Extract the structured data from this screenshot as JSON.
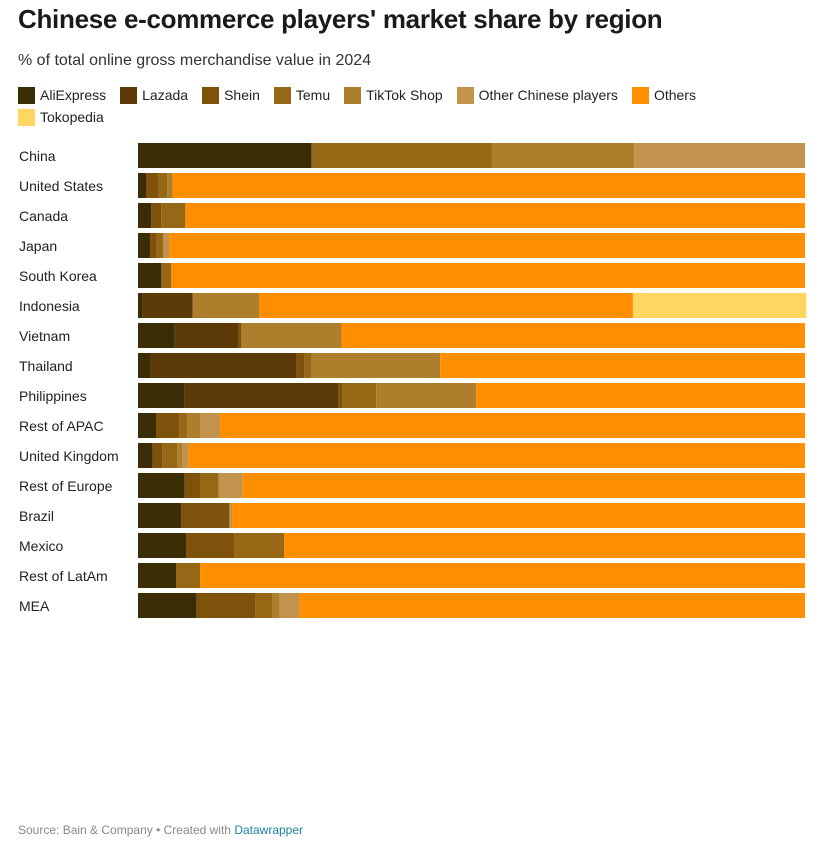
{
  "title": "Chinese e-commerce players' market share by region",
  "subtitle": "% of total online gross merchandise value in 2024",
  "footer": {
    "source": "Source: Bain & Company • Created with ",
    "link": "Datawrapper"
  },
  "chart_data": {
    "type": "bar",
    "orientation": "horizontal",
    "stacked": true,
    "xlim": [
      0,
      100
    ],
    "grid": false,
    "legend_position": "top",
    "title": "Chinese e-commerce players' market share by region",
    "subtitle": "% of total online gross merchandise value in 2024",
    "colors": {
      "AliExpress": "#3a2c05",
      "Lazada": "#5c3a08",
      "Shein": "#7e520b",
      "Temu": "#966714",
      "TikTok Shop": "#ad7f2c",
      "Other Chinese players": "#c2934d",
      "Others": "#ff8f00",
      "Tokopedia": "#ffd65f"
    },
    "series_names": [
      "AliExpress",
      "Lazada",
      "Shein",
      "Temu",
      "TikTok Shop",
      "Other Chinese players",
      "Others",
      "Tokopedia"
    ],
    "categories": [
      "China",
      "United States",
      "Canada",
      "Japan",
      "South Korea",
      "Indonesia",
      "Vietnam",
      "Thailand",
      "Philippines",
      "Rest of APAC",
      "United Kingdom",
      "Rest of Europe",
      "Brazil",
      "Mexico",
      "Rest of LatAm",
      "MEA"
    ],
    "groups": [
      [
        0
      ],
      [
        1,
        2
      ],
      [
        3,
        4
      ],
      [
        5,
        6,
        7,
        8,
        9
      ],
      [
        10,
        11
      ],
      [
        12,
        13,
        14
      ],
      [
        15
      ]
    ],
    "series": [
      {
        "name": "AliExpress",
        "values": [
          26,
          1.2,
          2,
          1.8,
          3.5,
          0.7,
          5.5,
          1.8,
          7,
          2.7,
          2.2,
          7,
          6.5,
          7.2,
          5.7,
          8.8
        ]
      },
      {
        "name": "Lazada",
        "values": [
          0,
          0,
          0,
          0,
          0,
          7.5,
          9.5,
          22,
          23,
          0,
          0,
          0,
          0,
          0,
          0,
          0
        ]
      },
      {
        "name": "Shein",
        "values": [
          0,
          1.8,
          1.5,
          1,
          0,
          0,
          0.5,
          1.2,
          0.7,
          3.5,
          1.5,
          2.3,
          7.2,
          7.2,
          0,
          8.8
        ]
      },
      {
        "name": "Temu",
        "values": [
          27,
          1.4,
          3.6,
          1,
          1.5,
          0,
          0,
          1,
          5,
          1.2,
          2.2,
          2.8,
          0,
          7.5,
          3.6,
          2.6
        ]
      },
      {
        "name": "TikTok Shop",
        "values": [
          21.4,
          0.8,
          0,
          0,
          0,
          10,
          15,
          19.3,
          15,
          1.9,
          0.8,
          0,
          0,
          0,
          0,
          1
        ]
      },
      {
        "name": "Other Chinese players",
        "values": [
          25.6,
          0,
          0,
          0.9,
          0,
          0,
          0,
          0,
          0,
          3,
          0.9,
          3.6,
          0.4,
          0,
          0,
          3
        ]
      },
      {
        "name": "Others",
        "values": [
          0,
          94.8,
          92.9,
          95.3,
          95,
          56,
          69.5,
          54.7,
          49.3,
          87.7,
          92.4,
          84.3,
          85.9,
          78.1,
          90.7,
          75.8
        ]
      },
      {
        "name": "Tokopedia",
        "values": [
          0,
          0,
          0,
          0,
          0,
          26,
          0,
          0,
          0,
          0,
          0,
          0,
          0,
          0,
          0,
          0
        ]
      }
    ]
  }
}
